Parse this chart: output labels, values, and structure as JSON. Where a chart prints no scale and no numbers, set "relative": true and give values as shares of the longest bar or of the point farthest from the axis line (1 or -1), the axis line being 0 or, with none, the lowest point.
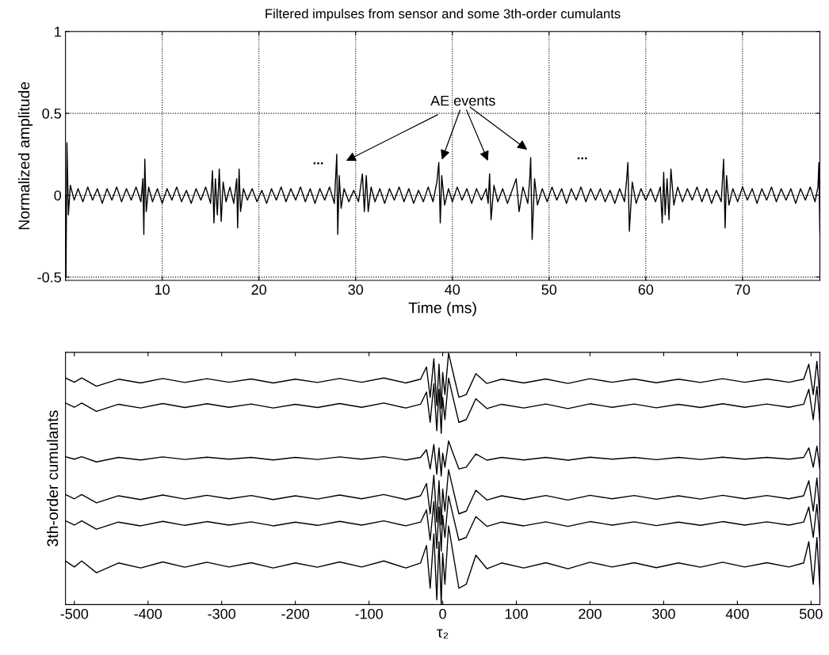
{
  "chart_data": [
    {
      "type": "line",
      "title": "Filtered impulses from sensor and some 3th-order cumulants",
      "xlabel": "Time (ms)",
      "ylabel": "Normalized amplitude",
      "xlim": [
        0,
        78
      ],
      "ylim": [
        -0.52,
        1
      ],
      "xticks": [
        10,
        20,
        30,
        40,
        50,
        60,
        70
      ],
      "yticks": [
        -0.5,
        0,
        0.5,
        1
      ],
      "grid": true,
      "color": "#000000",
      "x": [
        0,
        0.05,
        0.15,
        0.3,
        0.5,
        0.9,
        1.3,
        1.8,
        2.3,
        2.8,
        3.3,
        3.8,
        4.3,
        4.8,
        5.3,
        5.8,
        6.3,
        6.8,
        7.3,
        7.8,
        8.0,
        8.1,
        8.2,
        8.35,
        8.6,
        9.0,
        9.5,
        10.0,
        10.5,
        11,
        11.5,
        12,
        12.5,
        13,
        13.5,
        14,
        14.5,
        15.0,
        15.2,
        15.35,
        15.5,
        15.7,
        15.9,
        16.1,
        16.3,
        16.6,
        17,
        17.4,
        17.7,
        17.8,
        17.95,
        18.1,
        18.4,
        18.8,
        19.3,
        19.8,
        20.3,
        20.8,
        21.3,
        21.8,
        22.3,
        22.8,
        23.3,
        23.8,
        24.3,
        24.8,
        25.3,
        25.8,
        26.3,
        26.8,
        27.3,
        27.8,
        28.05,
        28.15,
        28.3,
        28.5,
        28.8,
        29.3,
        29.8,
        30.3,
        30.7,
        30.9,
        31.1,
        31.3,
        31.6,
        32,
        32.5,
        33,
        33.5,
        34,
        34.5,
        35,
        35.5,
        36,
        36.5,
        37,
        37.5,
        38,
        38.4,
        38.6,
        38.75,
        38.9,
        39.2,
        39.6,
        40,
        40.5,
        41,
        41.5,
        42,
        42.5,
        43,
        43.5,
        43.7,
        43.85,
        44,
        44.3,
        44.7,
        45.2,
        45.7,
        46.3,
        46.6,
        46.9,
        47.3,
        47.8,
        48.0,
        48.1,
        48.25,
        48.5,
        48.8,
        49.3,
        49.8,
        50.3,
        50.8,
        51.3,
        51.8,
        52.3,
        52.8,
        53.3,
        53.8,
        54.3,
        54.8,
        55.3,
        55.8,
        56.3,
        56.8,
        57.3,
        57.8,
        58.0,
        58.15,
        58.3,
        58.6,
        59,
        59.5,
        60,
        60.5,
        61,
        61.5,
        61.7,
        61.85,
        62,
        62.2,
        62.4,
        62.6,
        62.9,
        63.3,
        63.8,
        64.3,
        64.8,
        65.3,
        65.8,
        66.3,
        66.8,
        67.3,
        67.8,
        68.05,
        68.2,
        68.35,
        68.6,
        69,
        69.5,
        70,
        70.5,
        71,
        71.5,
        72,
        72.5,
        73,
        73.5,
        74,
        74.5,
        75,
        75.5,
        76,
        76.5,
        77,
        77.5,
        77.8,
        77.9,
        78.0
      ],
      "values": [
        0,
        -0.5,
        0.32,
        -0.12,
        0.06,
        -0.03,
        0.04,
        -0.04,
        0.05,
        -0.03,
        0.04,
        -0.05,
        0.04,
        -0.03,
        0.05,
        -0.04,
        0.04,
        -0.03,
        0.05,
        -0.04,
        0.1,
        -0.24,
        0.22,
        -0.1,
        0.05,
        -0.04,
        0.04,
        -0.05,
        0.04,
        -0.03,
        0.05,
        -0.04,
        0.03,
        -0.05,
        0.04,
        -0.03,
        0.05,
        -0.05,
        0.15,
        -0.17,
        0.1,
        -0.12,
        0.16,
        -0.16,
        0.08,
        -0.04,
        0.05,
        -0.05,
        0.1,
        -0.2,
        0.16,
        -0.1,
        0.04,
        -0.03,
        0.04,
        -0.04,
        0.03,
        -0.05,
        0.04,
        -0.03,
        0.05,
        -0.04,
        0.04,
        -0.03,
        0.05,
        -0.04,
        0.04,
        -0.05,
        0.04,
        -0.03,
        0.05,
        -0.05,
        0.25,
        -0.24,
        0.12,
        -0.08,
        0.04,
        -0.04,
        0.03,
        -0.04,
        0.13,
        -0.1,
        0.12,
        -0.1,
        0.05,
        -0.04,
        0.04,
        -0.05,
        0.04,
        -0.03,
        0.05,
        -0.04,
        0.04,
        -0.05,
        0.03,
        -0.04,
        0.05,
        -0.04,
        0.08,
        0.2,
        -0.17,
        0.12,
        -0.06,
        0.04,
        -0.04,
        0.05,
        -0.03,
        0.04,
        -0.05,
        0.04,
        -0.03,
        0.04,
        -0.05,
        0.13,
        -0.15,
        0.06,
        -0.04,
        0.04,
        -0.05,
        0.05,
        0.1,
        -0.1,
        0.05,
        -0.05,
        0.1,
        0.23,
        -0.27,
        0.1,
        -0.06,
        0.04,
        -0.04,
        0.05,
        -0.03,
        0.04,
        -0.05,
        0.04,
        -0.03,
        0.05,
        -0.04,
        0.04,
        -0.03,
        0.04,
        -0.04,
        0.03,
        -0.05,
        0.04,
        -0.04,
        0.08,
        0.2,
        -0.22,
        0.08,
        -0.05,
        0.04,
        -0.03,
        0.04,
        -0.04,
        0.05,
        -0.17,
        0.14,
        -0.12,
        0.1,
        -0.15,
        0.16,
        -0.06,
        0.05,
        -0.04,
        0.04,
        -0.03,
        0.05,
        -0.04,
        0.04,
        -0.05,
        0.03,
        -0.04,
        0.22,
        -0.2,
        0.12,
        -0.06,
        0.04,
        -0.04,
        0.05,
        -0.03,
        0.04,
        -0.05,
        0.04,
        -0.03,
        0.05,
        -0.04,
        0.04,
        -0.03,
        0.04,
        -0.05,
        0.04,
        -0.03,
        0.05,
        -0.04,
        0.05,
        0.2,
        -0.23
      ],
      "annotations": [
        "AE events",
        "...",
        "..."
      ]
    },
    {
      "type": "line",
      "relative": true,
      "xlabel": "τ₂",
      "ylabel": "3th-order cumulants",
      "xlim": [
        -512,
        512
      ],
      "xticks": [
        -500,
        -400,
        -300,
        -200,
        -100,
        0,
        100,
        200,
        300,
        400,
        500
      ],
      "grid": false,
      "x": [
        -512,
        -500,
        -490,
        -470,
        -440,
        -410,
        -380,
        -350,
        -320,
        -290,
        -260,
        -230,
        -200,
        -170,
        -140,
        -110,
        -80,
        -50,
        -30,
        -22,
        -17,
        -12,
        -8,
        -5,
        -2,
        0,
        3,
        8,
        14,
        22,
        32,
        45,
        60,
        80,
        110,
        140,
        170,
        200,
        230,
        260,
        290,
        320,
        350,
        380,
        410,
        440,
        470,
        490,
        497,
        503,
        508,
        512
      ],
      "series": [
        {
          "color": "#000000",
          "values": [
            0.901,
            0.884,
            0.901,
            0.868,
            0.896,
            0.881,
            0.899,
            0.883,
            0.898,
            0.884,
            0.897,
            0.881,
            0.896,
            0.883,
            0.899,
            0.884,
            0.901,
            0.881,
            0.896,
            0.945,
            0.824,
            0.978,
            0.791,
            0.956,
            0.78,
            0.923,
            0.835,
            1.0,
            0.923,
            0.824,
            0.835,
            0.918,
            0.879,
            0.896,
            0.881,
            0.897,
            0.879,
            0.898,
            0.884,
            0.897,
            0.882,
            0.896,
            0.883,
            0.898,
            0.884,
            0.897,
            0.884,
            0.896,
            0.956,
            0.835,
            0.967,
            0.824
          ]
        },
        {
          "color": "#000000",
          "values": [
            0.801,
            0.784,
            0.801,
            0.768,
            0.796,
            0.781,
            0.799,
            0.783,
            0.798,
            0.784,
            0.797,
            0.781,
            0.796,
            0.783,
            0.799,
            0.784,
            0.801,
            0.781,
            0.796,
            0.845,
            0.724,
            0.878,
            0.691,
            0.856,
            0.68,
            0.823,
            0.735,
            0.9,
            0.823,
            0.724,
            0.735,
            0.818,
            0.779,
            0.796,
            0.781,
            0.797,
            0.779,
            0.798,
            0.784,
            0.797,
            0.782,
            0.796,
            0.783,
            0.798,
            0.784,
            0.797,
            0.784,
            0.796,
            0.856,
            0.735,
            0.867,
            0.724
          ]
        },
        {
          "color": "#000000",
          "values": [
            0.587,
            0.577,
            0.587,
            0.566,
            0.584,
            0.574,
            0.586,
            0.576,
            0.585,
            0.577,
            0.584,
            0.574,
            0.584,
            0.576,
            0.586,
            0.577,
            0.587,
            0.574,
            0.584,
            0.615,
            0.538,
            0.636,
            0.517,
            0.622,
            0.51,
            0.601,
            0.545,
            0.65,
            0.601,
            0.538,
            0.545,
            0.598,
            0.573,
            0.584,
            0.574,
            0.584,
            0.573,
            0.585,
            0.577,
            0.584,
            0.575,
            0.584,
            0.576,
            0.585,
            0.577,
            0.584,
            0.577,
            0.584,
            0.622,
            0.545,
            0.629,
            0.538
          ]
        },
        {
          "color": "#000000",
          "values": [
            0.436,
            0.419,
            0.436,
            0.403,
            0.431,
            0.416,
            0.434,
            0.418,
            0.433,
            0.419,
            0.432,
            0.416,
            0.431,
            0.418,
            0.434,
            0.419,
            0.436,
            0.416,
            0.431,
            0.48,
            0.359,
            0.513,
            0.326,
            0.491,
            0.315,
            0.458,
            0.37,
            0.535,
            0.458,
            0.359,
            0.37,
            0.453,
            0.414,
            0.431,
            0.416,
            0.432,
            0.414,
            0.433,
            0.419,
            0.432,
            0.417,
            0.431,
            0.418,
            0.433,
            0.419,
            0.432,
            0.419,
            0.431,
            0.491,
            0.37,
            0.502,
            0.359
          ]
        },
        {
          "color": "#000000",
          "values": [
            0.331,
            0.314,
            0.331,
            0.298,
            0.326,
            0.311,
            0.329,
            0.313,
            0.328,
            0.314,
            0.327,
            0.311,
            0.326,
            0.313,
            0.329,
            0.314,
            0.331,
            0.311,
            0.326,
            0.375,
            0.254,
            0.408,
            0.221,
            0.386,
            0.21,
            0.353,
            0.265,
            0.43,
            0.353,
            0.254,
            0.265,
            0.348,
            0.309,
            0.326,
            0.311,
            0.327,
            0.309,
            0.328,
            0.314,
            0.327,
            0.312,
            0.326,
            0.313,
            0.328,
            0.314,
            0.327,
            0.314,
            0.326,
            0.386,
            0.265,
            0.397,
            0.254
          ]
        },
        {
          "color": "#000000",
          "values": [
            0.171,
            0.147,
            0.171,
            0.124,
            0.163,
            0.143,
            0.167,
            0.146,
            0.166,
            0.147,
            0.164,
            0.143,
            0.163,
            0.146,
            0.167,
            0.147,
            0.171,
            0.143,
            0.163,
            0.233,
            0.062,
            0.279,
            0.016,
            0.248,
            0,
            0.202,
            0.078,
            0.31,
            0.202,
            0.062,
            0.078,
            0.194,
            0.14,
            0.163,
            0.143,
            0.164,
            0.14,
            0.166,
            0.147,
            0.164,
            0.144,
            0.163,
            0.146,
            0.166,
            0.147,
            0.164,
            0.147,
            0.163,
            0.248,
            0.078,
            0.264,
            0.062
          ]
        }
      ]
    }
  ]
}
